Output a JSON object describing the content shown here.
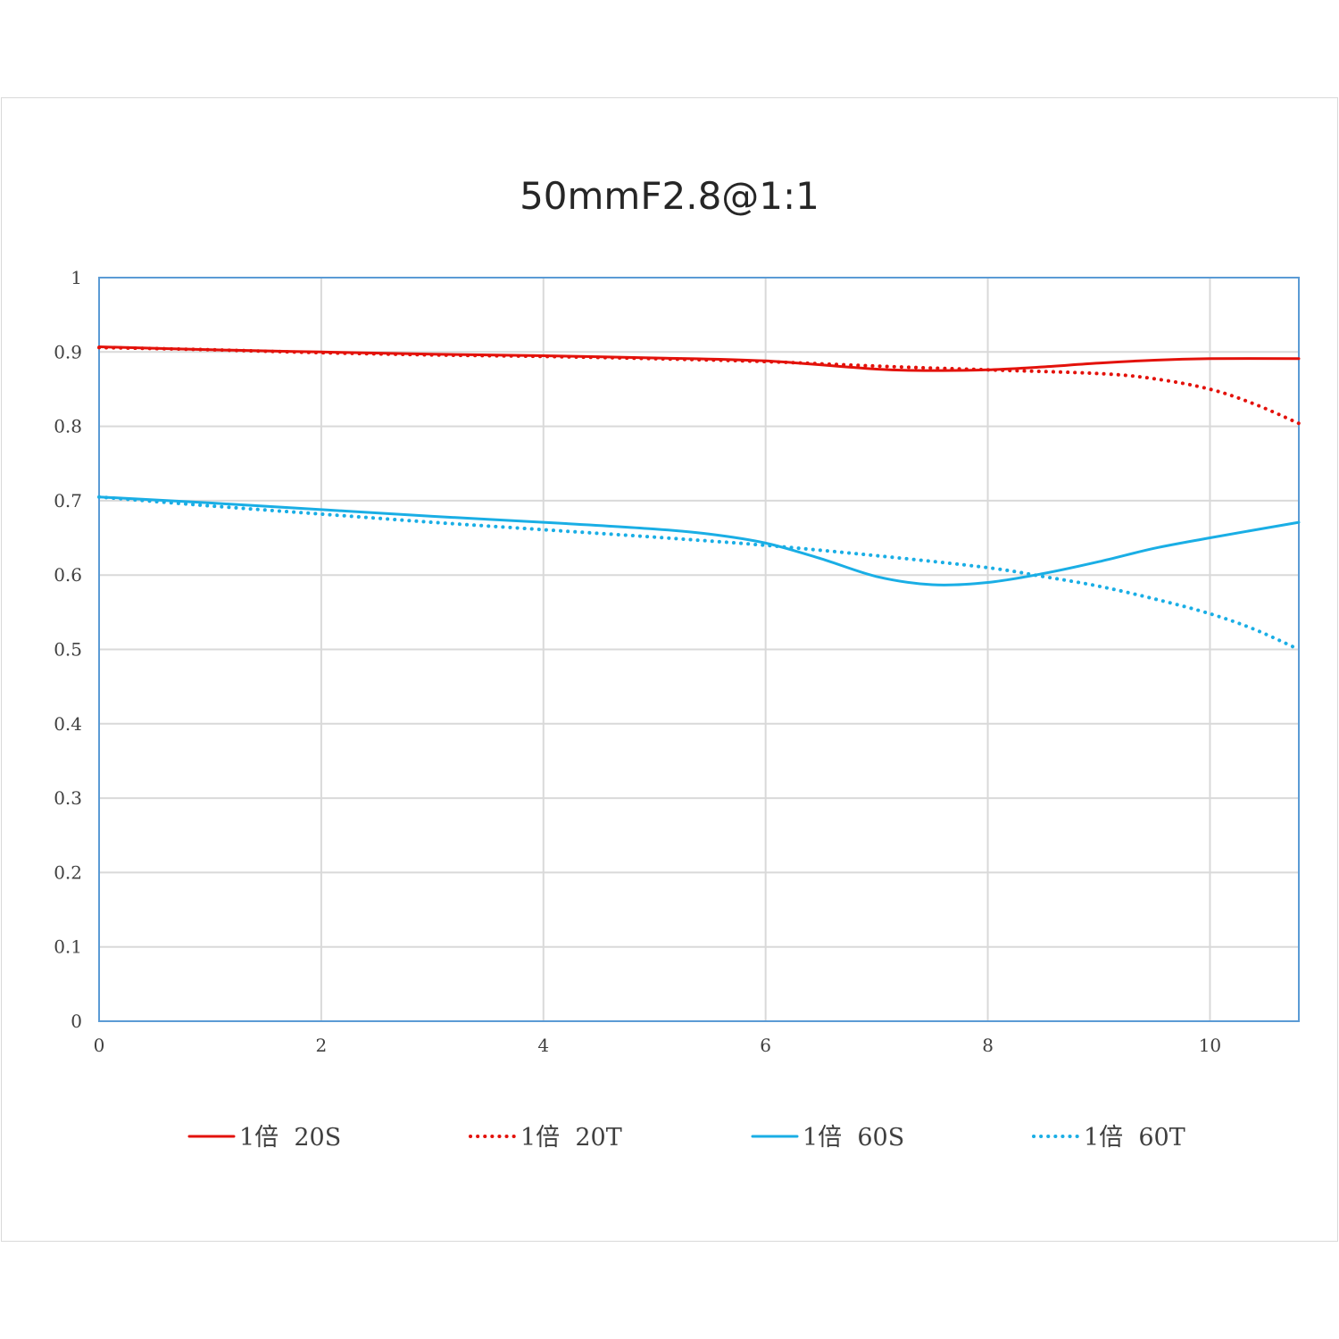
{
  "chart_data": {
    "type": "line",
    "title": "50mmF2.8@1:1",
    "xlabel": "",
    "ylabel": "",
    "xlim": [
      0,
      10.8
    ],
    "ylim": [
      0,
      1
    ],
    "x_ticks": [
      "0",
      "2",
      "4",
      "6",
      "8",
      "10"
    ],
    "y_ticks": [
      "0",
      "0.1",
      "0.2",
      "0.3",
      "0.4",
      "0.5",
      "0.6",
      "0.7",
      "0.8",
      "0.9",
      "1"
    ],
    "grid": true,
    "legend_position": "bottom",
    "series": [
      {
        "name": "1倍 20S",
        "color": "#e3120b",
        "style": "solid",
        "x": [
          0,
          1,
          2,
          3,
          4,
          5,
          6,
          7,
          7.5,
          8,
          8.5,
          9,
          9.5,
          10,
          10.8
        ],
        "y": [
          0.907,
          0.903,
          0.9,
          0.897,
          0.895,
          0.892,
          0.888,
          0.877,
          0.875,
          0.876,
          0.88,
          0.885,
          0.889,
          0.891,
          0.891
        ]
      },
      {
        "name": "1倍 20T",
        "color": "#e3120b",
        "style": "dotted",
        "x": [
          0,
          1,
          2,
          3,
          4,
          5,
          6,
          7,
          8,
          9,
          9.5,
          10,
          10.4,
          10.8
        ],
        "y": [
          0.906,
          0.903,
          0.899,
          0.896,
          0.894,
          0.891,
          0.887,
          0.881,
          0.876,
          0.871,
          0.864,
          0.85,
          0.83,
          0.804
        ]
      },
      {
        "name": "1倍 60S",
        "color": "#1aaee5",
        "style": "solid",
        "x": [
          0,
          1,
          2,
          3,
          4,
          5,
          5.5,
          6,
          6.5,
          7,
          7.5,
          8,
          8.5,
          9,
          9.5,
          10,
          10.8
        ],
        "y": [
          0.705,
          0.697,
          0.688,
          0.679,
          0.671,
          0.662,
          0.655,
          0.643,
          0.622,
          0.598,
          0.587,
          0.59,
          0.602,
          0.618,
          0.636,
          0.65,
          0.671
        ]
      },
      {
        "name": "1倍 60T",
        "color": "#1aaee5",
        "style": "dotted",
        "x": [
          0,
          1,
          2,
          3,
          4,
          5,
          6,
          7,
          8,
          8.5,
          9,
          9.5,
          10,
          10.4,
          10.8
        ],
        "y": [
          0.705,
          0.693,
          0.682,
          0.671,
          0.661,
          0.651,
          0.64,
          0.626,
          0.61,
          0.598,
          0.585,
          0.568,
          0.548,
          0.527,
          0.5
        ]
      }
    ]
  }
}
